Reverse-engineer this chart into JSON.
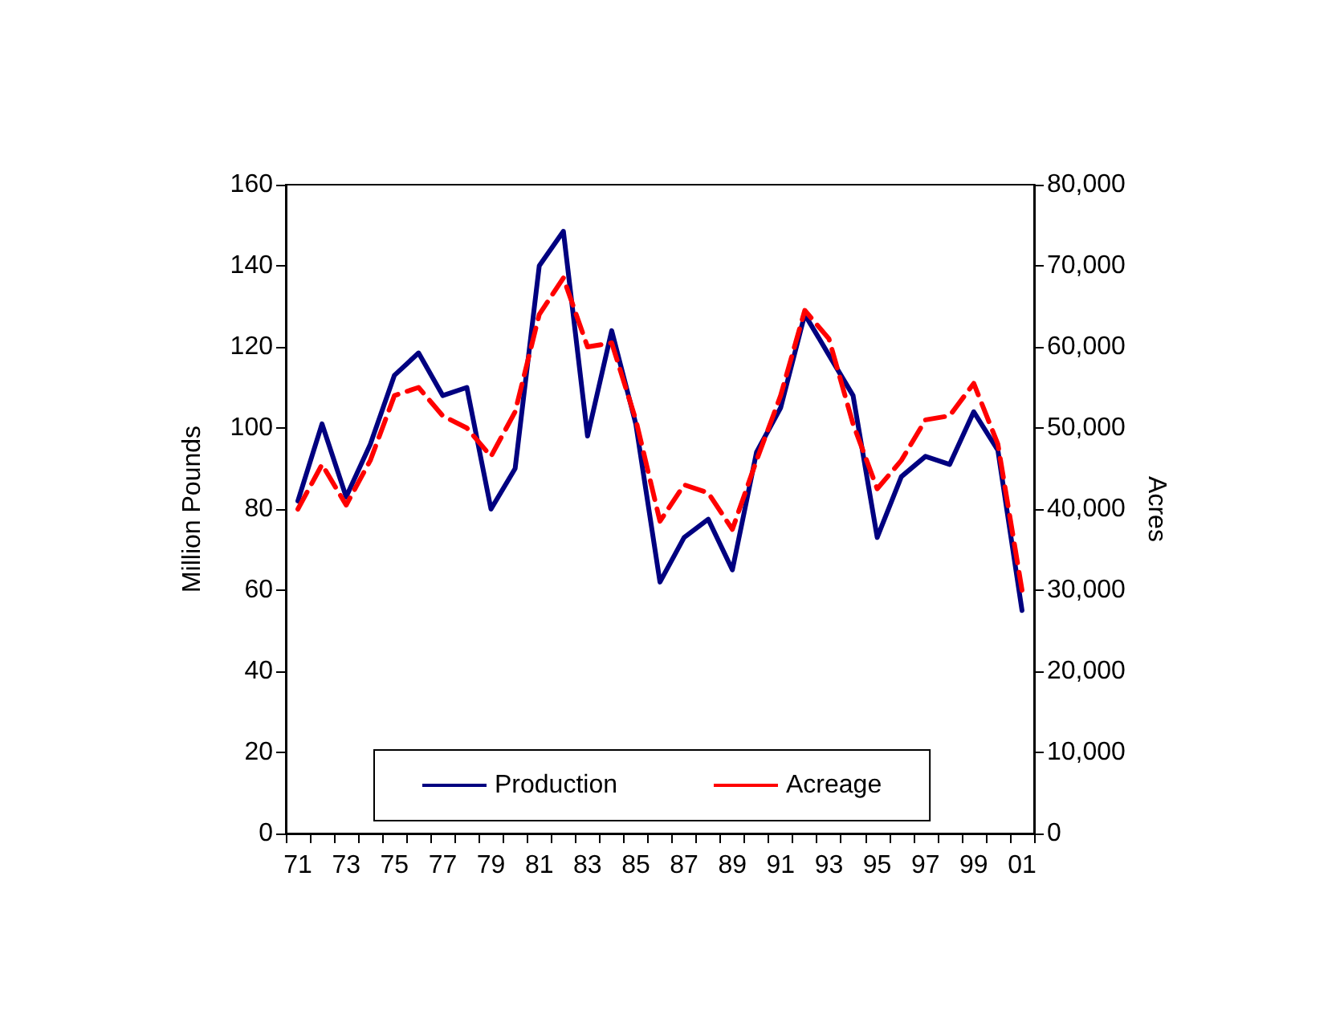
{
  "chart_data": {
    "type": "line",
    "categories": [
      "71",
      null,
      "73",
      null,
      "75",
      null,
      "77",
      null,
      "79",
      null,
      "81",
      null,
      "83",
      null,
      "85",
      null,
      "87",
      null,
      "89",
      null,
      "91",
      null,
      "93",
      null,
      "95",
      null,
      "97",
      null,
      "99",
      null,
      "01"
    ],
    "series": [
      {
        "name": "Production",
        "color": "#000080",
        "line_style": "solid",
        "values": [
          82,
          101,
          83,
          96,
          113,
          118.5,
          108,
          110,
          80,
          90,
          140,
          148.5,
          98,
          124,
          101,
          62,
          73,
          77.5,
          65,
          94,
          105,
          128,
          118,
          108,
          73,
          88,
          93,
          91,
          104,
          94.5,
          55
        ]
      },
      {
        "name": "Acreage",
        "color": "#ff0000",
        "line_style": "dashed",
        "axis": "y2",
        "values": [
          40000,
          45500,
          40500,
          46000,
          54000,
          55000,
          51500,
          50000,
          46500,
          52000,
          64000,
          68500,
          60000,
          60500,
          51000,
          38500,
          43000,
          42000,
          37500,
          46000,
          54000,
          64500,
          61000,
          50500,
          42500,
          46000,
          51000,
          51500,
          55500,
          48000,
          30000
        ]
      }
    ],
    "ylabel": "Million Pounds",
    "y2label": "Acres",
    "ylim": [
      0,
      160
    ],
    "yticks": [
      0,
      20,
      40,
      60,
      80,
      100,
      120,
      140,
      160
    ],
    "y2lim": [
      0,
      80000
    ],
    "y2ticks": [
      {
        "value": 0,
        "label": "0"
      },
      {
        "value": 10000,
        "label": "10,000"
      },
      {
        "value": 20000,
        "label": "20,000"
      },
      {
        "value": 30000,
        "label": "30,000"
      },
      {
        "value": 40000,
        "label": "40,000"
      },
      {
        "value": 50000,
        "label": "50,000"
      },
      {
        "value": 60000,
        "label": "60,000"
      },
      {
        "value": 70000,
        "label": "70,000"
      },
      {
        "value": 80000,
        "label": "80,000"
      }
    ],
    "legend": "bottom",
    "marker": "none",
    "grid": false
  }
}
